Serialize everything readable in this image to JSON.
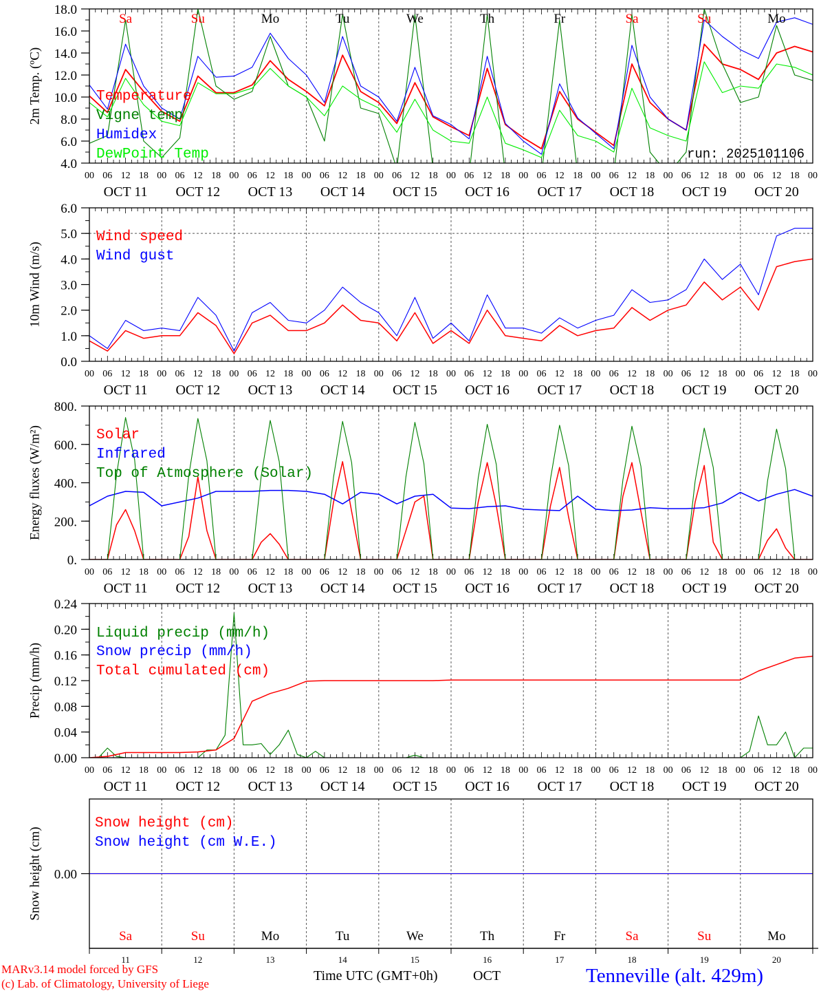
{
  "footer": {
    "model": "MARv3.14 model forced by GFS",
    "credit": "(c) Lab. of Climatology, University of Liege",
    "time_axis": "Time UTC (GMT+0h)",
    "month": "OCT",
    "station": "Tenneville (alt. 429m)"
  },
  "x_axis": {
    "hours": 240,
    "hour_labels": [
      "00",
      "06",
      "12",
      "18"
    ],
    "dates": [
      "OCT 11",
      "OCT 12",
      "OCT 13",
      "OCT 14",
      "OCT 15",
      "OCT 16",
      "OCT 17",
      "OCT 18",
      "OCT 19",
      "OCT 20"
    ],
    "day_names": [
      "Sa",
      "Su",
      "Mo",
      "Tu",
      "We",
      "Th",
      "Fr",
      "Sa",
      "Su",
      "Mo"
    ],
    "day_numbers": [
      "11",
      "12",
      "13",
      "14",
      "15",
      "16",
      "17",
      "18",
      "19",
      "20"
    ],
    "weekend": [
      true,
      true,
      false,
      false,
      false,
      false,
      false,
      true,
      true,
      false
    ]
  },
  "colors": {
    "red": "#ff0000",
    "blue": "#0000ff",
    "green": "#008000",
    "lime": "#00ee00",
    "weekend": "#ff0000",
    "station": "#0000ff"
  },
  "chart_data": [
    {
      "type": "line",
      "ylabel": "2m Temp. (ºC)",
      "ylim": [
        4,
        18
      ],
      "yticks": [
        4,
        6,
        8,
        10,
        12,
        14,
        16,
        18
      ],
      "ytick_labels": [
        "4.0",
        "6.0",
        "8.0",
        "10.0",
        "12.0",
        "14.0",
        "16.0",
        "18.0"
      ],
      "annotation": "run: 2025101106",
      "series": [
        {
          "name": "Temperature",
          "color": "#ff0000",
          "width": 1.8,
          "step_hours": 6,
          "values": [
            10.1,
            8.6,
            12.5,
            10.5,
            8.7,
            7.8,
            11.9,
            10.4,
            10.4,
            11.1,
            13.3,
            11.6,
            10.5,
            9.2,
            13.8,
            10.5,
            9.5,
            7.6,
            11.3,
            8.2,
            7.3,
            6.5,
            12.6,
            7.5,
            6.3,
            5.3,
            10.5,
            8.0,
            6.8,
            5.6,
            13.0,
            9.5,
            8.0,
            7.0,
            14.8,
            13.0,
            12.5,
            11.6,
            14.0,
            14.6,
            14.1
          ]
        },
        {
          "name": "Vigne temp",
          "color": "#008000",
          "width": 1.1,
          "step_hours": 6,
          "values": [
            5.8,
            6.5,
            17.0,
            6.0,
            4.5,
            6.3,
            18.0,
            11.0,
            9.8,
            10.5,
            15.5,
            11.0,
            10.0,
            6.0,
            17.5,
            9.0,
            8.5,
            3.5,
            17.5,
            3.5,
            3.0,
            3.0,
            17.5,
            3.0,
            3.0,
            3.0,
            17.0,
            3.0,
            3.0,
            3.0,
            17.5,
            5.0,
            3.0,
            5.0,
            18.0,
            13.0,
            9.5,
            10.0,
            16.5,
            12.0,
            11.5
          ]
        },
        {
          "name": "Humidex",
          "color": "#0000ff",
          "width": 1.1,
          "step_hours": 6,
          "values": [
            11.1,
            8.9,
            14.8,
            11.0,
            9.0,
            8.0,
            13.7,
            11.8,
            11.9,
            12.7,
            15.8,
            13.5,
            12.0,
            9.5,
            15.5,
            11.0,
            10.0,
            7.8,
            12.7,
            8.3,
            7.5,
            6.2,
            13.7,
            7.6,
            6.0,
            4.8,
            11.2,
            8.1,
            6.7,
            5.3,
            14.7,
            10.0,
            8.0,
            7.0,
            17.0,
            15.5,
            14.3,
            13.5,
            16.8,
            17.2,
            16.6
          ]
        },
        {
          "name": "DewPoint Temp",
          "color": "#00ee00",
          "width": 1.1,
          "step_hours": 6,
          "values": [
            9.5,
            8.2,
            11.7,
            9.3,
            7.8,
            7.4,
            11.3,
            10.3,
            10.3,
            10.8,
            12.6,
            11.0,
            10.0,
            8.3,
            11.0,
            9.8,
            9.0,
            6.8,
            9.8,
            7.0,
            6.0,
            5.8,
            10.0,
            5.8,
            5.2,
            4.5,
            8.8,
            6.5,
            6.0,
            5.0,
            10.8,
            7.2,
            6.5,
            6.0,
            13.2,
            10.4,
            11.0,
            10.8,
            13.0,
            12.7,
            12.0
          ]
        }
      ]
    },
    {
      "type": "line",
      "ylabel": "10m Wind (m/s)",
      "ylim": [
        0,
        6
      ],
      "yticks": [
        0,
        1,
        2,
        3,
        4,
        5,
        6
      ],
      "ytick_labels": [
        "0.0",
        "1.0",
        "2.0",
        "3.0",
        "4.0",
        "5.0",
        "6.0"
      ],
      "reference_line": 5.0,
      "series": [
        {
          "name": "Wind speed",
          "color": "#ff0000",
          "width": 1.5,
          "step_hours": 6,
          "values": [
            0.8,
            0.4,
            1.2,
            0.9,
            1.0,
            1.0,
            1.9,
            1.4,
            0.3,
            1.5,
            1.8,
            1.2,
            1.2,
            1.5,
            2.2,
            1.6,
            1.5,
            0.8,
            1.9,
            0.7,
            1.2,
            0.7,
            2.0,
            1.0,
            0.9,
            0.8,
            1.4,
            1.0,
            1.2,
            1.3,
            2.1,
            1.6,
            2.0,
            2.2,
            3.1,
            2.4,
            2.9,
            2.0,
            3.7,
            3.9,
            4.0
          ]
        },
        {
          "name": "Wind gust",
          "color": "#0000ff",
          "width": 1.1,
          "step_hours": 6,
          "values": [
            1.0,
            0.5,
            1.6,
            1.2,
            1.3,
            1.2,
            2.5,
            1.8,
            0.4,
            1.9,
            2.3,
            1.6,
            1.5,
            2.0,
            2.9,
            2.3,
            1.9,
            1.0,
            2.5,
            0.9,
            1.5,
            0.8,
            2.6,
            1.3,
            1.3,
            1.1,
            1.7,
            1.3,
            1.6,
            1.8,
            2.8,
            2.3,
            2.4,
            2.8,
            4.0,
            3.2,
            3.8,
            2.6,
            4.9,
            5.2,
            5.2
          ]
        }
      ]
    },
    {
      "type": "line",
      "ylabel": "Energy fluxes (W/m²)",
      "ylim": [
        0,
        800
      ],
      "yticks": [
        0,
        200,
        400,
        600,
        800
      ],
      "ytick_labels": [
        "0.",
        "200.",
        "400.",
        "600.",
        "800."
      ],
      "series": [
        {
          "name": "Solar",
          "color": "#ff0000",
          "width": 1.5,
          "step_hours": 3,
          "values": [
            0,
            0,
            0,
            180,
            260,
            150,
            0,
            0,
            0,
            0,
            0,
            120,
            430,
            150,
            0,
            0,
            0,
            0,
            0,
            90,
            135,
            80,
            0,
            0,
            0,
            0,
            0,
            300,
            510,
            250,
            0,
            0,
            0,
            0,
            0,
            150,
            300,
            330,
            0,
            0,
            0,
            0,
            0,
            300,
            505,
            280,
            0,
            0,
            0,
            0,
            0,
            280,
            480,
            220,
            0,
            0,
            0,
            0,
            0,
            330,
            505,
            250,
            0,
            0,
            0,
            0,
            0,
            300,
            490,
            90,
            0,
            0,
            0,
            0,
            0,
            100,
            160,
            60,
            0,
            0,
            0
          ]
        },
        {
          "name": "Infrared",
          "color": "#0000ff",
          "width": 1.5,
          "step_hours": 6,
          "values": [
            280,
            330,
            355,
            350,
            280,
            300,
            320,
            355,
            355,
            355,
            360,
            360,
            355,
            340,
            290,
            350,
            340,
            290,
            330,
            340,
            268,
            265,
            275,
            280,
            262,
            258,
            255,
            330,
            262,
            255,
            258,
            270,
            265,
            265,
            270,
            295,
            350,
            305,
            340,
            365,
            330
          ]
        },
        {
          "name": "Top of Atmosphere (Solar)",
          "color": "#008000",
          "width": 1.1,
          "step_hours": 3,
          "values": [
            0,
            0,
            0,
            440,
            740,
            520,
            0,
            0,
            0,
            0,
            0,
            440,
            735,
            515,
            0,
            0,
            0,
            0,
            0,
            435,
            725,
            510,
            0,
            0,
            0,
            0,
            0,
            430,
            720,
            505,
            0,
            0,
            0,
            0,
            0,
            430,
            715,
            500,
            0,
            0,
            0,
            0,
            0,
            425,
            705,
            495,
            0,
            0,
            0,
            0,
            0,
            420,
            700,
            490,
            0,
            0,
            0,
            0,
            0,
            415,
            695,
            485,
            0,
            0,
            0,
            0,
            0,
            410,
            685,
            480,
            0,
            0,
            0,
            0,
            0,
            410,
            680,
            475,
            0,
            0,
            0
          ]
        }
      ]
    },
    {
      "type": "line",
      "ylabel": "Precip (mm/h)",
      "ylim": [
        0,
        0.24
      ],
      "yticks": [
        0,
        0.04,
        0.08,
        0.12,
        0.16,
        0.2,
        0.24
      ],
      "ytick_labels": [
        "0.00",
        "0.04",
        "0.08",
        "0.12",
        "0.16",
        "0.20",
        "0.24"
      ],
      "series": [
        {
          "name": "Liquid precip (mm/h)",
          "color": "#008000",
          "width": 1.1,
          "step_hours": 3,
          "values": [
            0,
            0,
            0.015,
            0.002,
            0,
            0,
            0,
            0,
            0,
            0,
            0,
            0,
            0,
            0.012,
            0.012,
            0.035,
            0.225,
            0.02,
            0.02,
            0.022,
            0.005,
            0.02,
            0.043,
            0.005,
            0,
            0.01,
            0,
            0,
            0,
            0,
            0,
            0,
            0,
            0,
            0,
            0,
            0.004,
            0,
            0,
            0,
            0,
            0,
            0,
            0,
            0,
            0,
            0,
            0,
            0,
            0,
            0,
            0,
            0,
            0,
            0,
            0,
            0,
            0,
            0,
            0,
            0,
            0,
            0,
            0,
            0,
            0,
            0,
            0,
            0,
            0,
            0,
            0,
            0,
            0.01,
            0.065,
            0.02,
            0.02,
            0.04,
            0,
            0.015,
            0.015
          ]
        },
        {
          "name": "Snow precip (mm/h)",
          "color": "#0000ff",
          "width": 1.1,
          "step_hours": 24,
          "values": [
            0,
            0,
            0,
            0,
            0,
            0,
            0,
            0,
            0,
            0,
            0
          ]
        },
        {
          "name": "Total cumulated (cm)",
          "color": "#ff0000",
          "width": 1.5,
          "step_hours": 6,
          "values": [
            0.0,
            0.002,
            0.008,
            0.008,
            0.008,
            0.008,
            0.009,
            0.012,
            0.03,
            0.088,
            0.1,
            0.108,
            0.119,
            0.12,
            0.12,
            0.12,
            0.12,
            0.12,
            0.12,
            0.12,
            0.121,
            0.121,
            0.121,
            0.121,
            0.121,
            0.121,
            0.121,
            0.121,
            0.121,
            0.121,
            0.121,
            0.121,
            0.121,
            0.121,
            0.121,
            0.121,
            0.121,
            0.135,
            0.145,
            0.155,
            0.158
          ]
        }
      ]
    },
    {
      "type": "line",
      "ylabel": "Snow height (cm)",
      "ylim": [
        -1,
        1
      ],
      "yticks": [
        0
      ],
      "ytick_labels": [
        "0.00"
      ],
      "series": [
        {
          "name": "Snow height (cm)",
          "color": "#ff0000",
          "width": 1.2,
          "step_hours": 24,
          "values": [
            0,
            0,
            0,
            0,
            0,
            0,
            0,
            0,
            0,
            0,
            0
          ]
        },
        {
          "name": "Snow height (cm W.E.)",
          "color": "#0000ff",
          "width": 1.0,
          "step_hours": 24,
          "values": [
            0,
            0,
            0,
            0,
            0,
            0,
            0,
            0,
            0,
            0,
            0
          ]
        }
      ]
    }
  ]
}
